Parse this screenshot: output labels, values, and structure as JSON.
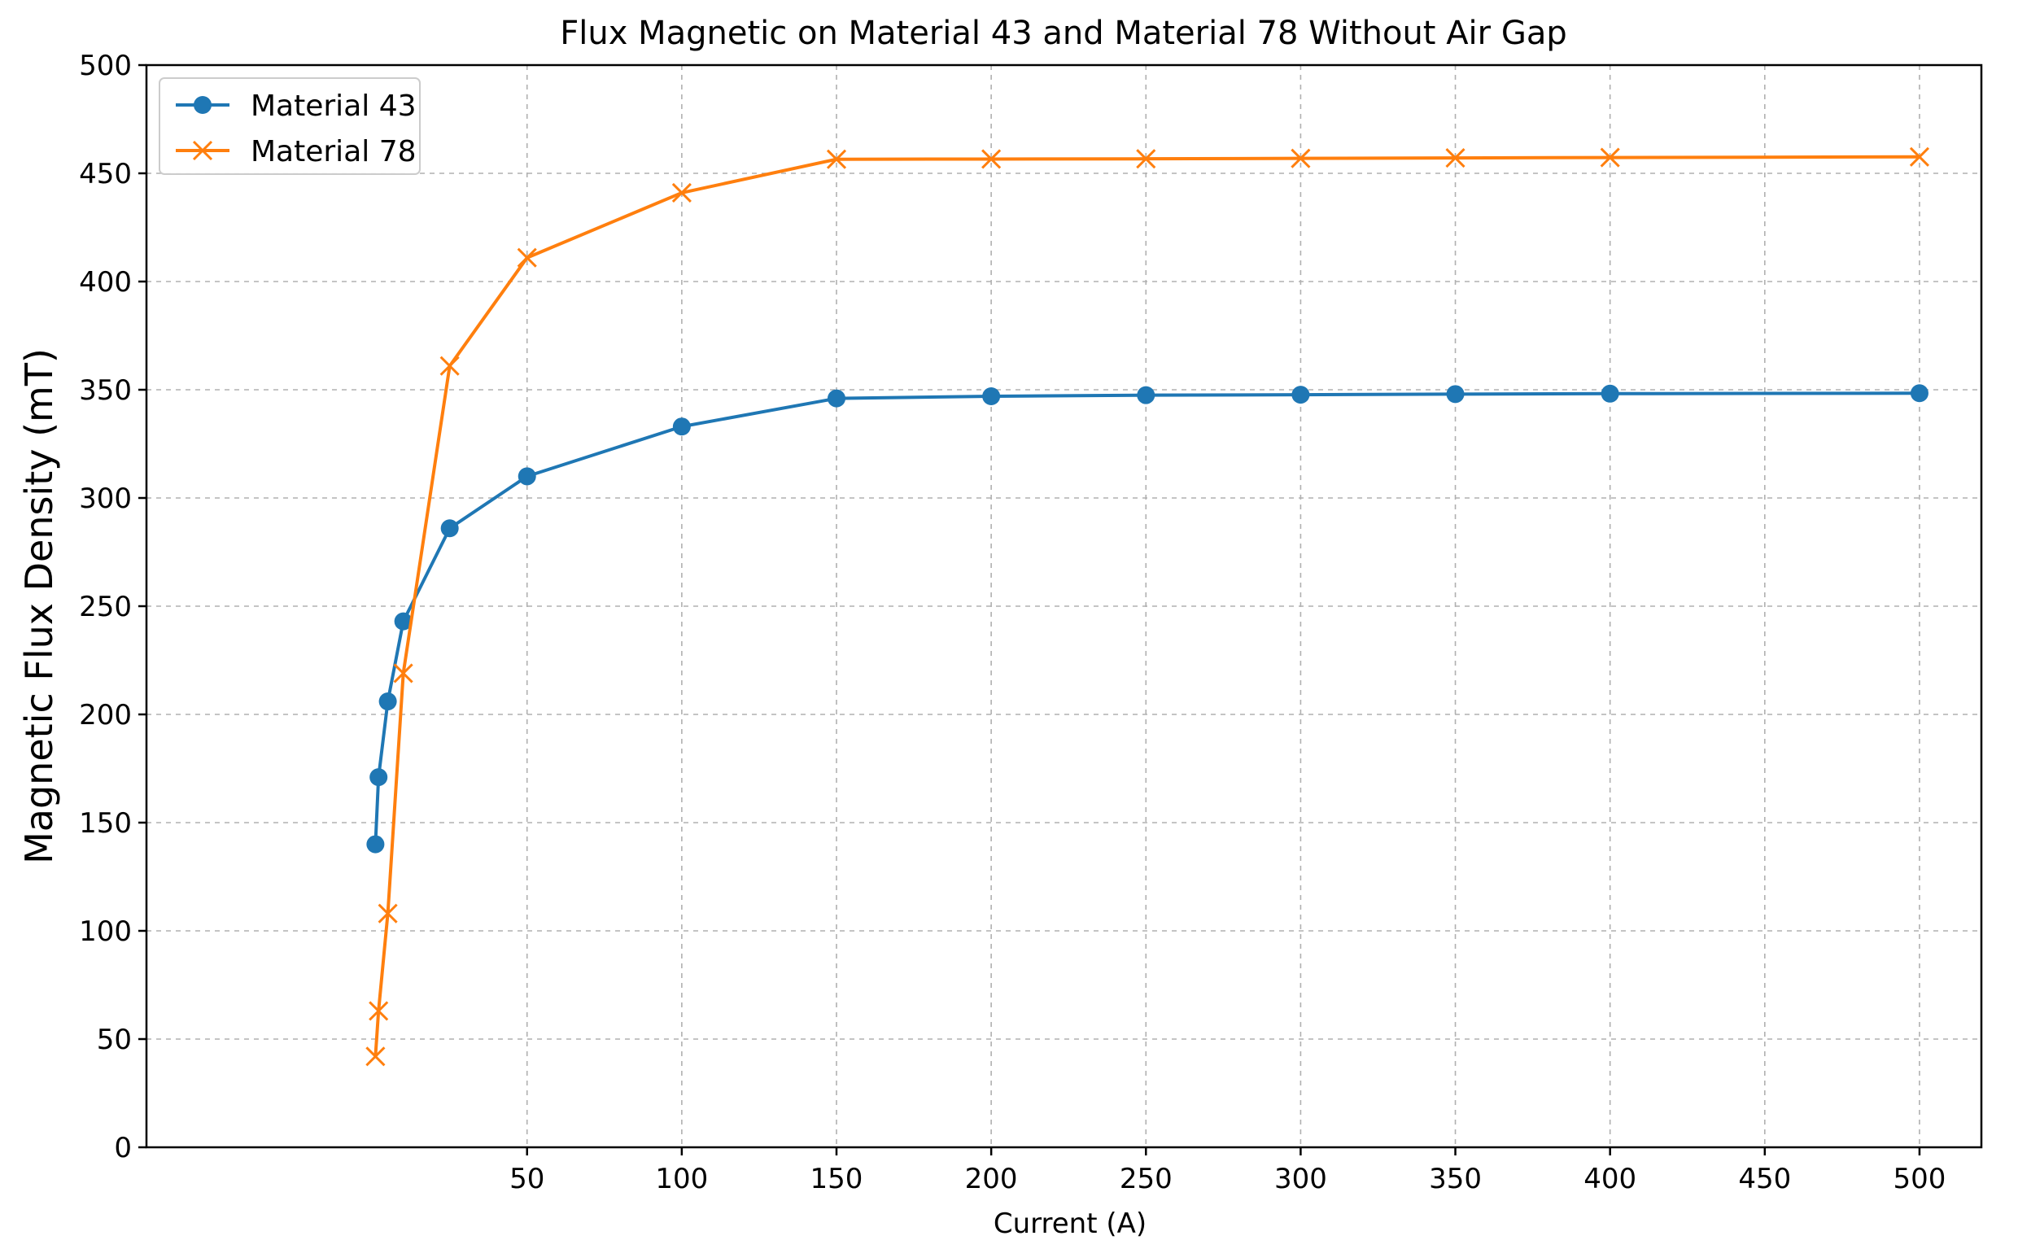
{
  "chart_data": {
    "type": "line",
    "title": "Flux Magnetic on Material 43 and Material 78 Without Air Gap",
    "xlabel": "Current (A)",
    "ylabel": "Magnetic Flux Density (mT)",
    "xlim": [
      -73,
      520
    ],
    "ylim": [
      0,
      500
    ],
    "xticks": [
      50,
      100,
      150,
      200,
      250,
      300,
      350,
      400,
      450,
      500
    ],
    "yticks": [
      0,
      50,
      100,
      150,
      200,
      250,
      300,
      350,
      400,
      450,
      500
    ],
    "grid": true,
    "legend_position": "top-left",
    "series": [
      {
        "name": "Material 43",
        "color": "#1f77b4",
        "marker": "circle",
        "x": [
          1,
          2,
          5,
          10,
          25,
          50,
          100,
          150,
          200,
          250,
          300,
          350,
          400,
          500
        ],
        "y": [
          140,
          171,
          206,
          243,
          286,
          310,
          333,
          346,
          347,
          347.5,
          347.7,
          348,
          348.2,
          348.4
        ]
      },
      {
        "name": "Material 78",
        "color": "#ff7f0e",
        "marker": "x",
        "x": [
          1,
          2,
          5,
          10,
          25,
          50,
          100,
          150,
          200,
          250,
          300,
          350,
          400,
          500
        ],
        "y": [
          42,
          63,
          108,
          219,
          361,
          411,
          441,
          456.5,
          456.6,
          456.7,
          456.9,
          457.1,
          457.3,
          457.6
        ]
      }
    ]
  }
}
